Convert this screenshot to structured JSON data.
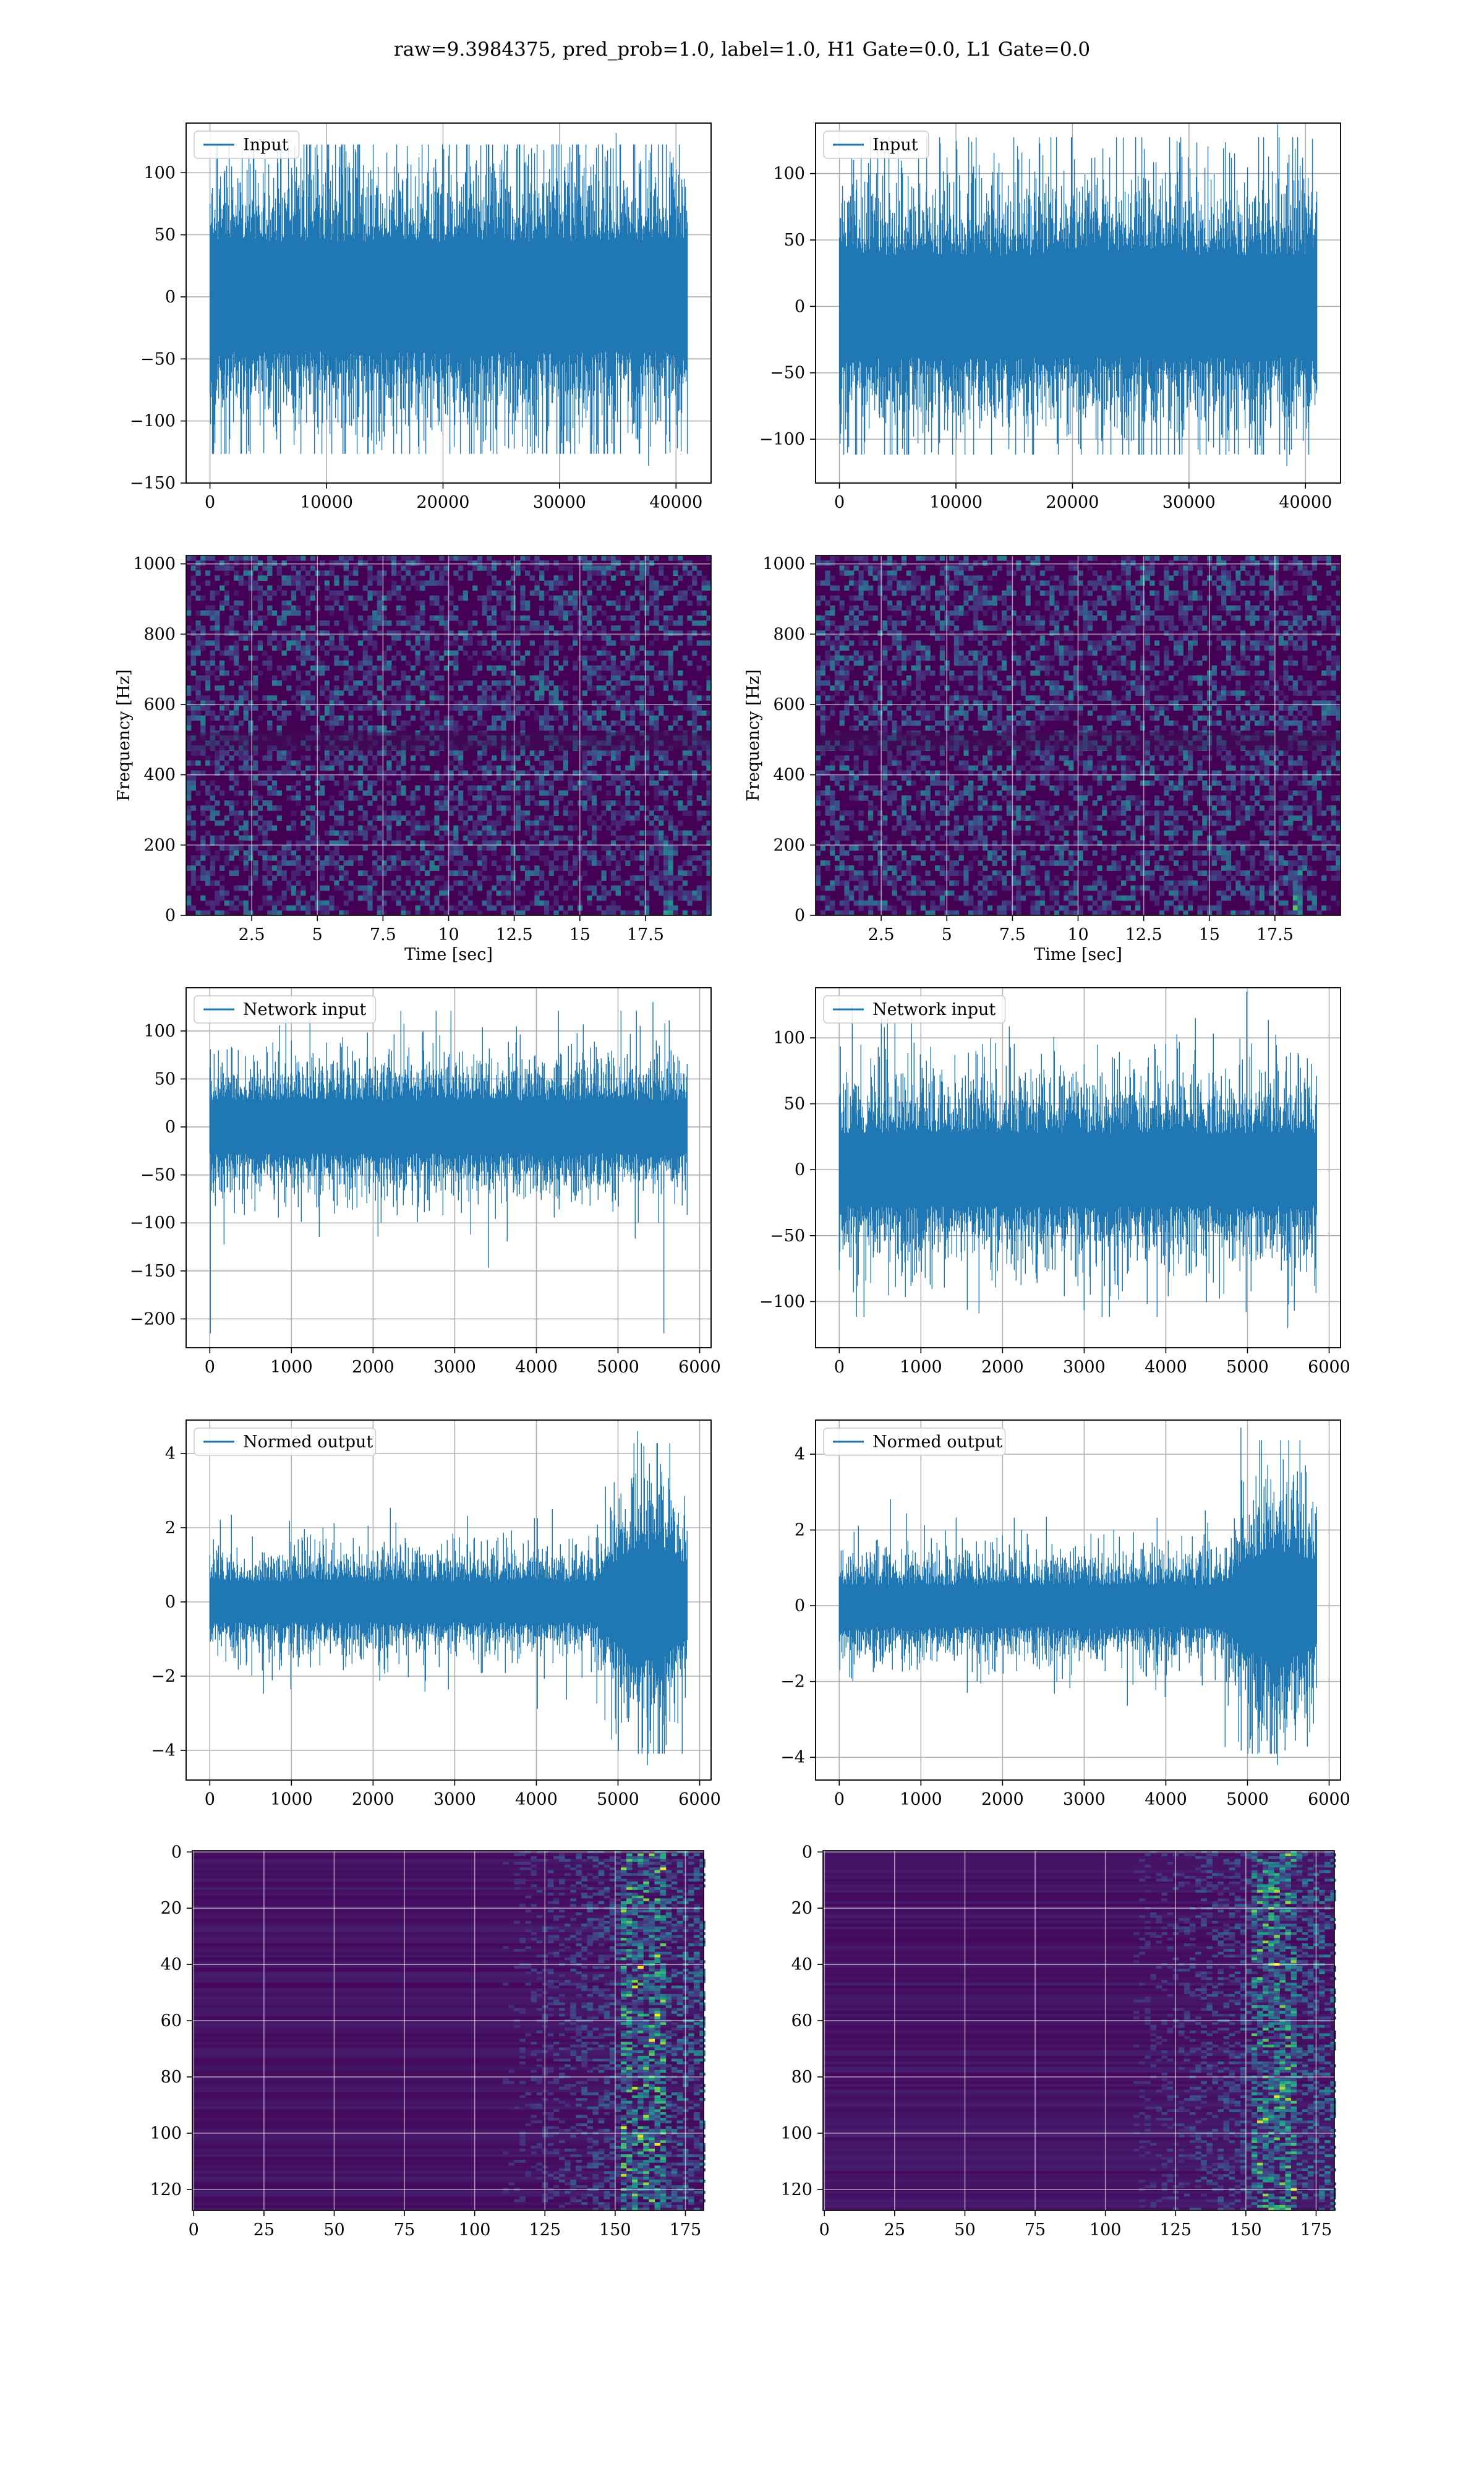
{
  "figure": {
    "suptitle": "raw=9.3984375, pred_prob=1.0, label=1.0, H1 Gate=0.0, L1 Gate=0.0"
  },
  "colors": {
    "line": "#1f77b4",
    "grid": "#b0b0b0",
    "viridis": [
      "#440154",
      "#3b528b",
      "#21918c",
      "#5ec962",
      "#fde725"
    ]
  },
  "chart_data": [
    {
      "type": "line",
      "name": "input-left",
      "legend": "Input",
      "n_points": 40960,
      "xlim": [
        -2048,
        43008
      ],
      "ylim": [
        -150,
        140
      ],
      "xticks": [
        0,
        10000,
        20000,
        30000,
        40000
      ],
      "yticks": [
        -150,
        -100,
        -50,
        0,
        50,
        100
      ],
      "envelope": {
        "core_high": 40,
        "core_low": -40,
        "peak_high": 132,
        "peak_low": -136
      },
      "grid": true,
      "legend_position": "upper-left"
    },
    {
      "type": "line",
      "name": "input-right",
      "legend": "Input",
      "n_points": 40960,
      "xlim": [
        -2048,
        43008
      ],
      "ylim": [
        -133,
        138
      ],
      "xticks": [
        0,
        10000,
        20000,
        30000,
        40000
      ],
      "yticks": [
        -100,
        -50,
        0,
        50,
        100
      ],
      "envelope": {
        "core_high": 35,
        "core_low": -35,
        "peak_high": 137,
        "peak_low": -120
      },
      "grid": true,
      "legend_position": "upper-left"
    },
    {
      "type": "heatmap",
      "name": "spectrogram-left",
      "xlabel": "Time [sec]",
      "ylabel": "Frequency [Hz]",
      "xlim": [
        0,
        20
      ],
      "ylim": [
        0,
        1024
      ],
      "xticks": [
        2.5,
        5.0,
        7.5,
        10.0,
        12.5,
        15.0,
        17.5
      ],
      "yticks": [
        0,
        200,
        400,
        600,
        800,
        1000
      ],
      "colormap": "viridis",
      "grid": true
    },
    {
      "type": "heatmap",
      "name": "spectrogram-right",
      "xlabel": "Time [sec]",
      "ylabel": "Frequency [Hz]",
      "xlim": [
        0,
        20
      ],
      "ylim": [
        0,
        1024
      ],
      "xticks": [
        2.5,
        5.0,
        7.5,
        10.0,
        12.5,
        15.0,
        17.5
      ],
      "yticks": [
        0,
        200,
        400,
        600,
        800,
        1000
      ],
      "colormap": "viridis",
      "grid": true
    },
    {
      "type": "line",
      "name": "network-input-left",
      "legend": "Network input",
      "n_points": 5850,
      "xlim": [
        -290,
        6140
      ],
      "ylim": [
        -230,
        145
      ],
      "xticks": [
        0,
        1000,
        2000,
        3000,
        4000,
        5000,
        6000
      ],
      "yticks": [
        -200,
        -150,
        -100,
        -50,
        0,
        50,
        100
      ],
      "envelope": {
        "core_high": 25,
        "core_low": -25,
        "peak_high": 130,
        "peak_low": -215
      },
      "grid": true,
      "legend_position": "upper-left"
    },
    {
      "type": "line",
      "name": "network-input-right",
      "legend": "Network input",
      "n_points": 5850,
      "xlim": [
        -290,
        6140
      ],
      "ylim": [
        -135,
        138
      ],
      "xticks": [
        0,
        1000,
        2000,
        3000,
        4000,
        5000,
        6000
      ],
      "yticks": [
        -100,
        -50,
        0,
        50,
        100
      ],
      "envelope": {
        "core_high": 25,
        "core_low": -25,
        "peak_high": 135,
        "peak_low": -120
      },
      "grid": true,
      "legend_position": "upper-left"
    },
    {
      "type": "line",
      "name": "normed-output-left",
      "legend": "Normed output",
      "n_points": 5850,
      "xlim": [
        -290,
        6140
      ],
      "ylim": [
        -4.8,
        4.9
      ],
      "xticks": [
        0,
        1000,
        2000,
        3000,
        4000,
        5000,
        6000
      ],
      "yticks": [
        -4,
        -2,
        0,
        2,
        4
      ],
      "envelope": {
        "core_high": 0.5,
        "core_low": -0.5,
        "peak_high": 4.6,
        "peak_low": -4.4,
        "burst_start": 4700
      },
      "grid": true,
      "legend_position": "upper-left"
    },
    {
      "type": "line",
      "name": "normed-output-right",
      "legend": "Normed output",
      "n_points": 5850,
      "xlim": [
        -290,
        6140
      ],
      "ylim": [
        -4.6,
        4.9
      ],
      "xticks": [
        0,
        1000,
        2000,
        3000,
        4000,
        5000,
        6000
      ],
      "yticks": [
        -4,
        -2,
        0,
        2,
        4
      ],
      "envelope": {
        "core_high": 0.5,
        "core_low": -0.5,
        "peak_high": 4.7,
        "peak_low": -4.2,
        "burst_start": 4700
      },
      "grid": true,
      "legend_position": "upper-left"
    },
    {
      "type": "heatmap",
      "name": "feature-map-left",
      "xlim": [
        -0.5,
        181.5
      ],
      "ylim": [
        127.5,
        -0.5
      ],
      "xticks": [
        0,
        25,
        50,
        75,
        100,
        125,
        150,
        175
      ],
      "yticks": [
        0,
        20,
        40,
        60,
        80,
        100,
        120
      ],
      "colormap": "viridis",
      "grid": true
    },
    {
      "type": "heatmap",
      "name": "feature-map-right",
      "xlim": [
        -0.5,
        181.5
      ],
      "ylim": [
        127.5,
        -0.5
      ],
      "xticks": [
        0,
        25,
        50,
        75,
        100,
        125,
        150,
        175
      ],
      "yticks": [
        0,
        20,
        40,
        60,
        80,
        100,
        120
      ],
      "colormap": "viridis",
      "grid": true
    }
  ]
}
